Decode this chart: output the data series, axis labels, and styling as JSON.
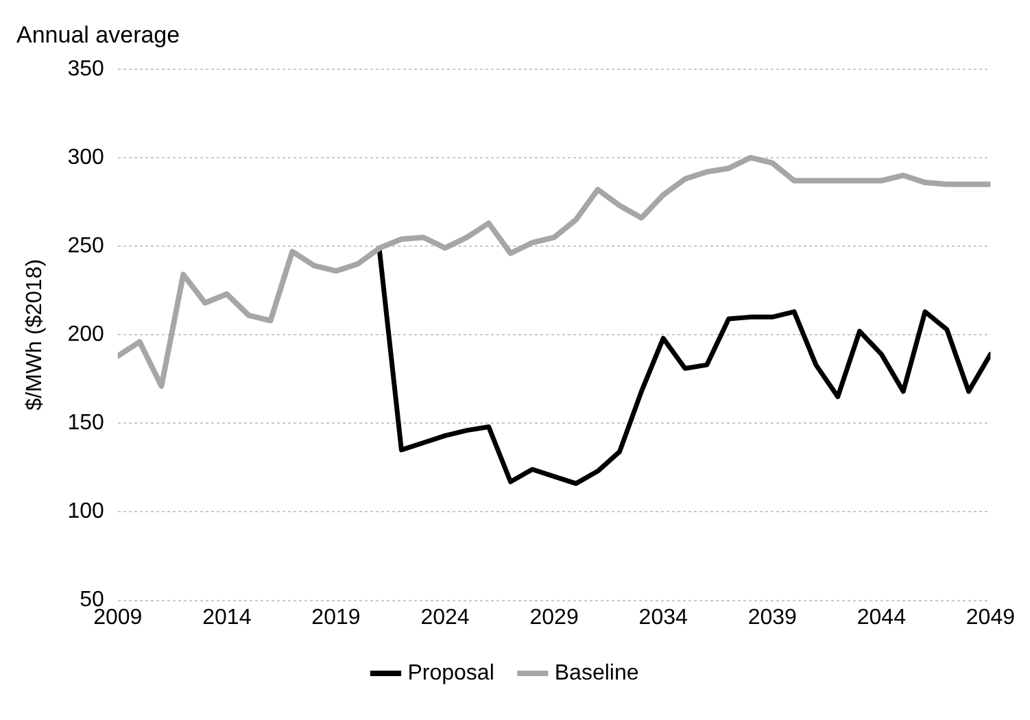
{
  "chart_data": {
    "type": "line",
    "title": "Annual average",
    "ylabel": "$/MWh ($2018)",
    "x": [
      2009,
      2010,
      2011,
      2012,
      2013,
      2014,
      2015,
      2016,
      2017,
      2018,
      2019,
      2020,
      2021,
      2022,
      2023,
      2024,
      2025,
      2026,
      2027,
      2028,
      2029,
      2030,
      2031,
      2032,
      2033,
      2034,
      2035,
      2036,
      2037,
      2038,
      2039,
      2040,
      2041,
      2042,
      2043,
      2044,
      2045,
      2046,
      2047,
      2048,
      2049
    ],
    "series": [
      {
        "name": "Proposal",
        "color": "#000000",
        "values": [
          null,
          null,
          null,
          null,
          null,
          null,
          null,
          null,
          null,
          null,
          null,
          null,
          247,
          135,
          139,
          143,
          146,
          148,
          117,
          124,
          120,
          116,
          123,
          134,
          168,
          198,
          181,
          183,
          209,
          210,
          210,
          213,
          183,
          165,
          202,
          189,
          168,
          213,
          203,
          168,
          189
        ]
      },
      {
        "name": "Baseline",
        "color": "#a6a6a6",
        "values": [
          188,
          196,
          171,
          234,
          218,
          223,
          211,
          208,
          247,
          239,
          236,
          240,
          249,
          254,
          255,
          249,
          255,
          263,
          246,
          252,
          255,
          265,
          282,
          273,
          266,
          279,
          288,
          292,
          294,
          300,
          297,
          287,
          287,
          287,
          287,
          287,
          290,
          286,
          285,
          285,
          285
        ]
      }
    ],
    "xlim": [
      2009,
      2049
    ],
    "xticks": [
      2009,
      2014,
      2019,
      2024,
      2029,
      2034,
      2039,
      2044,
      2049
    ],
    "ylim": [
      50,
      350
    ],
    "yticks": [
      50,
      100,
      150,
      200,
      250,
      300,
      350
    ],
    "grid": "y",
    "legend": "bottom",
    "marker": "none",
    "line_style": "solid"
  }
}
